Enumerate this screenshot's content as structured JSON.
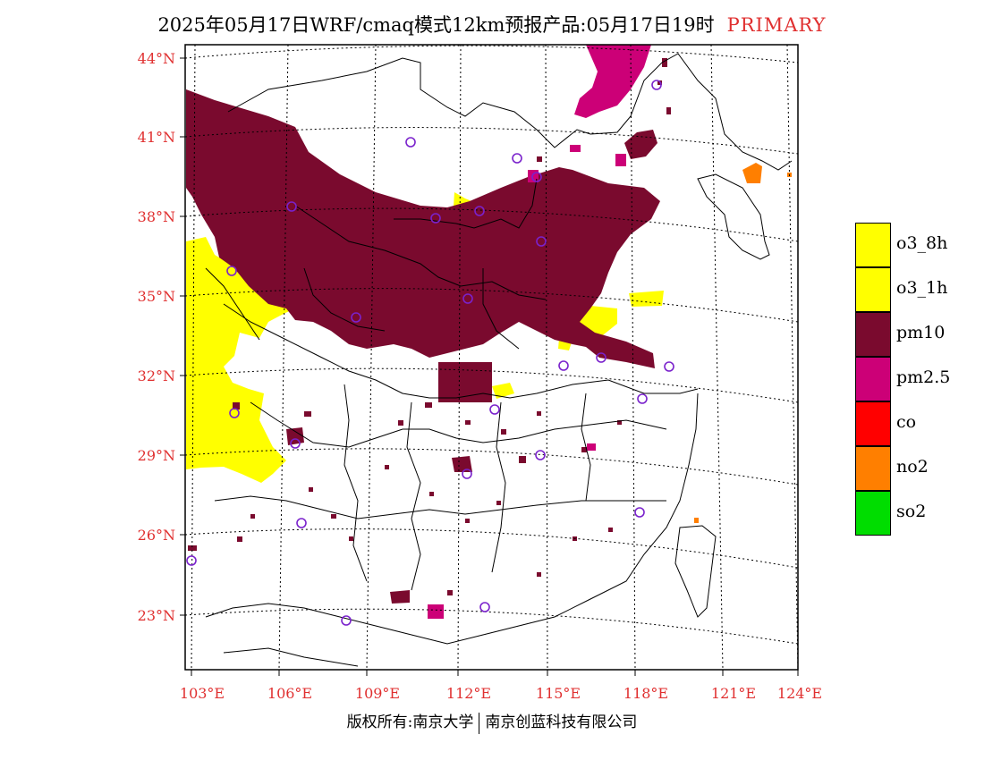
{
  "title": {
    "main": "2025年05月17日WRF/cmaq模式12km预报产品:05月17日19时",
    "tag": "PRIMARY"
  },
  "colors": {
    "o3_8h": "#ffff00",
    "o3_1h": "#ffff00",
    "pm10": "#7a0a2e",
    "pm2_5": "#cc0077",
    "co": "#ff0000",
    "no2": "#ff7f00",
    "so2": "#00dd00",
    "axis_label": "#e03030",
    "station": "#7a22cc"
  },
  "lat_labels": [
    "44°N",
    "41°N",
    "38°N",
    "35°N",
    "32°N",
    "29°N",
    "26°N",
    "23°N"
  ],
  "lon_labels": [
    "103°E",
    "106°E",
    "109°E",
    "112°E",
    "115°E",
    "118°E",
    "121°E",
    "124°E"
  ],
  "legend": [
    {
      "label": "o3_8h",
      "color": "#ffff00"
    },
    {
      "label": "o3_1h",
      "color": "#ffff00"
    },
    {
      "label": "pm10",
      "color": "#7a0a2e"
    },
    {
      "label": "pm2.5",
      "color": "#cc0077"
    },
    {
      "label": "co",
      "color": "#ff0000"
    },
    {
      "label": "no2",
      "color": "#ff7f00"
    },
    {
      "label": "so2",
      "color": "#00dd00"
    }
  ],
  "footer": {
    "left": "版权所有:南京大学",
    "right": "南京创蓝科技有限公司"
  }
}
